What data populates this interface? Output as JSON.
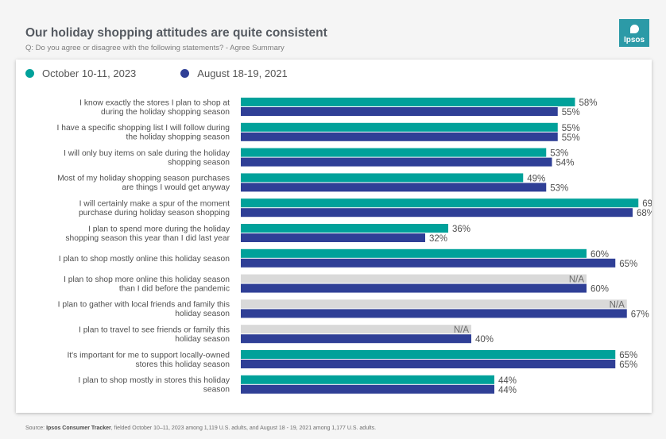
{
  "header": {
    "title": "Our holiday shopping attitudes are quite consistent",
    "subtitle": "Q: Do you agree or disagree with the following statements? - Agree Summary",
    "logo_text": "Ipsos"
  },
  "footer": {
    "source_prefix": "Source: ",
    "source_name": "Ipsos Consumer Tracker",
    "source_rest": ", fielded October 10–11, 2023 among 1,119 U.S. adults, and August 18 - 19, 2021 among 1,177 U.S. adults."
  },
  "colors": {
    "teal": "#00a19a",
    "navy": "#2f3f96",
    "na_fill": "#d9d9d9"
  },
  "chart_data": {
    "type": "bar",
    "orientation": "horizontal",
    "title": "Our holiday shopping attitudes are quite consistent",
    "xlim": [
      0,
      100
    ],
    "na_label": "N/A",
    "categories": [
      [
        "I know exactly the stores I plan to shop at",
        "during the holiday shopping season"
      ],
      [
        "I have a specific shopping list I will follow during",
        "the holiday shopping season"
      ],
      [
        "I will only buy items on sale during the holiday",
        "shopping season"
      ],
      [
        "Most of my holiday shopping season purchases",
        "are things I would get anyway"
      ],
      [
        "I will certainly make a spur of the moment",
        "purchase during holiday season shopping"
      ],
      [
        "I plan to spend more during the holiday",
        "shopping season this year than I did last year"
      ],
      [
        "I plan to shop mostly online this holiday season"
      ],
      [
        "I plan to shop more online this holiday season",
        "than I did before the pandemic"
      ],
      [
        "I plan to gather with local friends and family this",
        "holiday season"
      ],
      [
        "I plan to travel to see friends or family this",
        "holiday season"
      ],
      [
        "It's important for me to support locally-owned",
        "stores this holiday season"
      ],
      [
        "I plan to shop mostly in stores this holiday",
        "season"
      ]
    ],
    "series": [
      {
        "name": "October 10-11, 2023",
        "color": "#00a19a",
        "values": [
          58,
          55,
          53,
          49,
          69,
          36,
          60,
          null,
          null,
          null,
          65,
          44
        ],
        "na_ghost": [
          null,
          null,
          null,
          null,
          null,
          null,
          null,
          60,
          67,
          40,
          null,
          null
        ]
      },
      {
        "name": "August 18-19, 2021",
        "color": "#2f3f96",
        "values": [
          55,
          55,
          54,
          53,
          68,
          32,
          65,
          60,
          67,
          40,
          65,
          44
        ]
      }
    ]
  }
}
